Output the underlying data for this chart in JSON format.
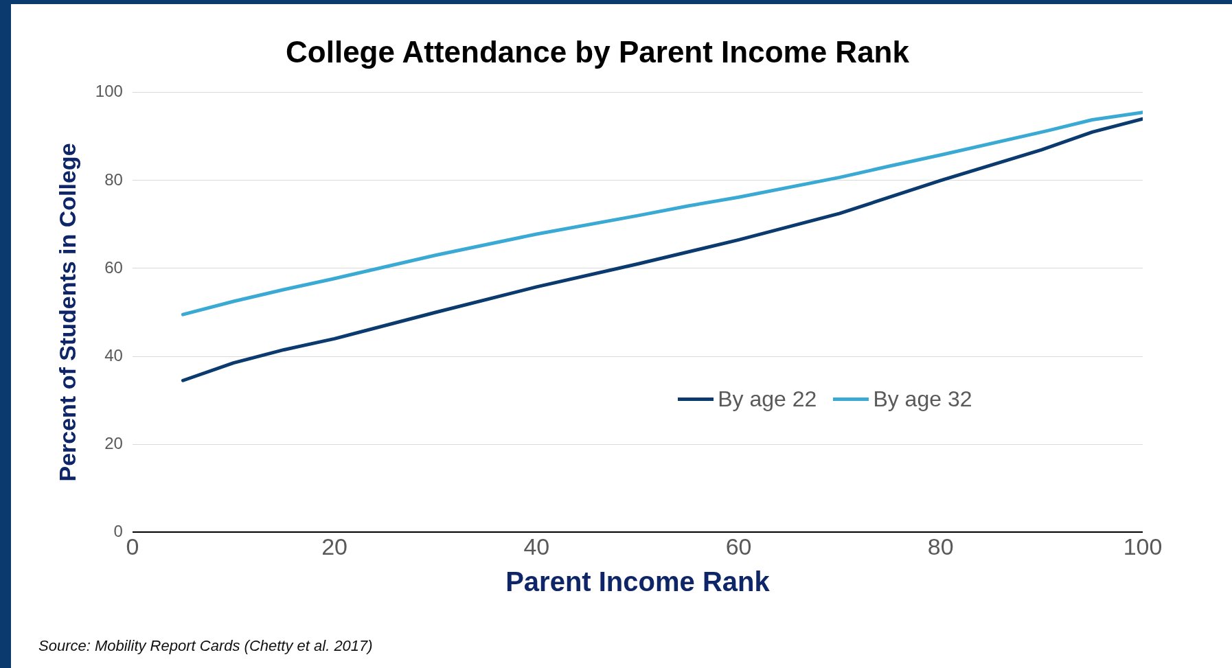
{
  "chart_data": {
    "type": "line",
    "title": "College Attendance by Parent Income Rank",
    "xlabel": "Parent Income Rank",
    "ylabel": "Percent of Students in College",
    "annotations": [
      "Source: Mobility Report Cards (Chetty et al. 2017)"
    ],
    "xlim": [
      0,
      100
    ],
    "xticks": [
      0,
      20,
      40,
      60,
      80,
      100
    ],
    "ylim": [
      0,
      100
    ],
    "yticks": [
      0,
      20,
      40,
      60,
      80,
      100
    ],
    "grid": "y",
    "legend": "right",
    "marker": "none",
    "line_style": "solid",
    "series": [
      {
        "name": "By age 22",
        "color": "#0b3a6e",
        "x": [
          5,
          10,
          15,
          20,
          30,
          40,
          50,
          60,
          70,
          80,
          90,
          95,
          100
        ],
        "values": [
          34.5,
          38.5,
          41.5,
          44,
          50,
          55.8,
          61,
          66.5,
          72.5,
          80,
          87,
          91,
          94
        ]
      },
      {
        "name": "By age 32",
        "color": "#3aaad4",
        "x": [
          5,
          10,
          15,
          20,
          30,
          40,
          50,
          55,
          60,
          70,
          75,
          80,
          90,
          95,
          100
        ],
        "values": [
          49.5,
          52.5,
          55.2,
          57.7,
          63,
          67.8,
          72,
          74.2,
          76.2,
          80.7,
          83.3,
          85.8,
          91,
          93.8,
          95.5
        ]
      }
    ]
  }
}
